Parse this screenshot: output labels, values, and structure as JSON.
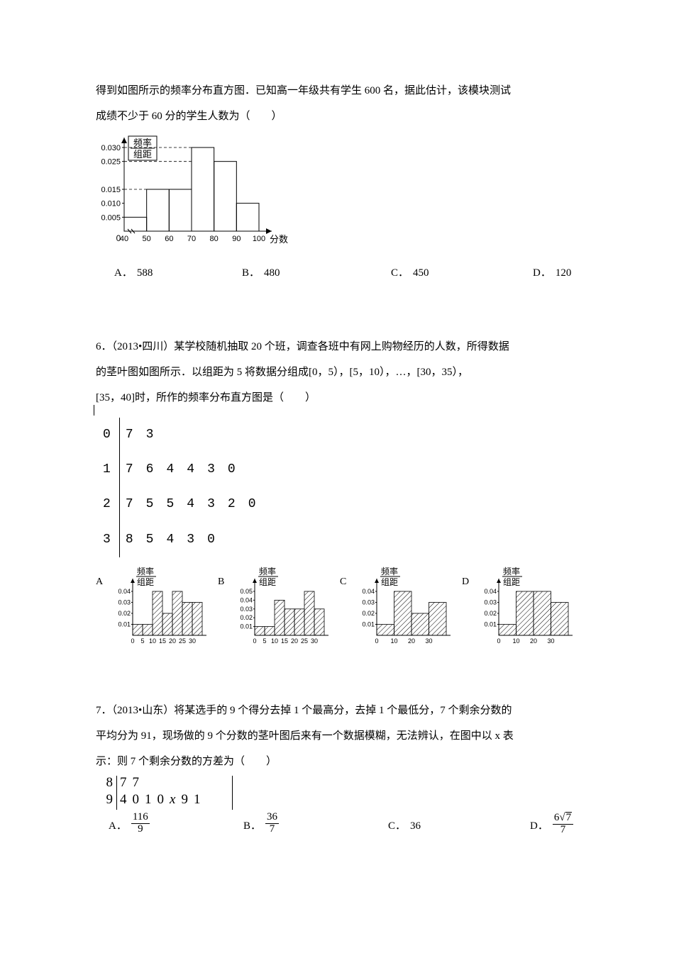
{
  "q5": {
    "para1": "得到如图所示的频率分布直方图．已知高一年级共有学生 600 名，据此估计，该模块测试",
    "para2": "成绩不少于 60 分的学生人数为（　　）",
    "chart": {
      "type": "histogram",
      "ylabel_top": "频率",
      "ylabel_bottom": "组距",
      "xlabel": "分数",
      "y_ticks": [
        0.005,
        0.01,
        0.015,
        0.025,
        0.03
      ],
      "x_ticks": [
        40,
        50,
        60,
        70,
        80,
        90,
        100
      ],
      "bars": [
        {
          "x0": 40,
          "x1": 50,
          "h": 0.005
        },
        {
          "x0": 50,
          "x1": 60,
          "h": 0.015
        },
        {
          "x0": 60,
          "x1": 70,
          "h": 0.015
        },
        {
          "x0": 70,
          "x1": 80,
          "h": 0.03
        },
        {
          "x0": 80,
          "x1": 90,
          "h": 0.025
        },
        {
          "x0": 90,
          "x1": 100,
          "h": 0.01
        }
      ],
      "dashed_y": [
        0.015,
        0.025,
        0.03
      ],
      "axes_color": "#000000",
      "background_color": "#ffffff"
    },
    "options": {
      "A": "588",
      "B": "480",
      "C": "450",
      "D": "120"
    }
  },
  "q6": {
    "para1": "6．（2013•四川）某学校随机抽取 20 个班，调查各班中有网上购物经历的人数，所得数据",
    "para2": "的茎叶图如图所示．以组距为 5 将数据分组成[0，5），[5，10），…，[30，35），",
    "para3": "[35，40]时，所作的频率分布直方图是（　　）",
    "stemleaf": {
      "rows": [
        {
          "stem": "0",
          "leaves": [
            "7",
            "3"
          ]
        },
        {
          "stem": "1",
          "leaves": [
            "7",
            "6",
            "4",
            "4",
            "3",
            "0"
          ]
        },
        {
          "stem": "2",
          "leaves": [
            "7",
            "5",
            "5",
            "4",
            "3",
            "2",
            "0"
          ]
        },
        {
          "stem": "3",
          "leaves": [
            "8",
            "5",
            "4",
            "3",
            "0"
          ]
        }
      ]
    },
    "option_labels": {
      "A": "A",
      "B": "B",
      "C": "C",
      "D": "D"
    },
    "small_chart_common": {
      "ylabel_top": "频率",
      "ylabel_bottom": "组距",
      "hatch_color": "#000000",
      "axes_color": "#000000"
    },
    "chartA": {
      "type": "histogram",
      "y_ticks": [
        0.01,
        0.02,
        0.03,
        0.04
      ],
      "x_ticks": [
        0,
        5,
        10,
        15,
        20,
        25,
        30
      ],
      "x_extra_tick": 35,
      "bars": [
        {
          "x0": 0,
          "x1": 5,
          "h": 0.01
        },
        {
          "x0": 5,
          "x1": 10,
          "h": 0.01
        },
        {
          "x0": 10,
          "x1": 15,
          "h": 0.04
        },
        {
          "x0": 15,
          "x1": 20,
          "h": 0.02
        },
        {
          "x0": 20,
          "x1": 25,
          "h": 0.04
        },
        {
          "x0": 25,
          "x1": 30,
          "h": 0.03
        },
        {
          "x0": 30,
          "x1": 35,
          "h": 0.03
        }
      ]
    },
    "chartB": {
      "type": "histogram",
      "y_ticks": [
        0.01,
        0.02,
        0.03,
        0.04,
        0.05
      ],
      "x_ticks": [
        0,
        5,
        10,
        15,
        20,
        25,
        30
      ],
      "x_extra_tick": 35,
      "bars": [
        {
          "x0": 0,
          "x1": 5,
          "h": 0.01
        },
        {
          "x0": 5,
          "x1": 10,
          "h": 0.01
        },
        {
          "x0": 10,
          "x1": 15,
          "h": 0.04
        },
        {
          "x0": 15,
          "x1": 20,
          "h": 0.03
        },
        {
          "x0": 20,
          "x1": 25,
          "h": 0.03
        },
        {
          "x0": 25,
          "x1": 30,
          "h": 0.05
        },
        {
          "x0": 30,
          "x1": 35,
          "h": 0.03
        }
      ]
    },
    "chartC": {
      "type": "histogram",
      "y_ticks": [
        0.01,
        0.02,
        0.03,
        0.04
      ],
      "x_ticks": [
        0,
        10,
        20,
        30
      ],
      "x_extra_tick": 40,
      "bars": [
        {
          "x0": 0,
          "x1": 10,
          "h": 0.01
        },
        {
          "x0": 10,
          "x1": 20,
          "h": 0.04
        },
        {
          "x0": 20,
          "x1": 30,
          "h": 0.02
        },
        {
          "x0": 30,
          "x1": 40,
          "h": 0.03
        }
      ]
    },
    "chartD": {
      "type": "histogram",
      "y_ticks": [
        0.01,
        0.02,
        0.03,
        0.04
      ],
      "x_ticks": [
        0,
        10,
        20,
        30
      ],
      "x_extra_tick": 40,
      "bars": [
        {
          "x0": 0,
          "x1": 10,
          "h": 0.01
        },
        {
          "x0": 10,
          "x1": 20,
          "h": 0.04
        },
        {
          "x0": 20,
          "x1": 30,
          "h": 0.04
        },
        {
          "x0": 30,
          "x1": 40,
          "h": 0.03
        }
      ]
    }
  },
  "q7": {
    "para1": "7．（2013•山东）将某选手的 9 个得分去掉 1 个最高分，去掉 1 个最低分，7 个剩余分数的",
    "para2": "平均分为 91，现场做的 9 个分数的茎叶图后来有一个数据模糊，无法辨认，在图中以 x 表",
    "para3": "示：则 7 个剩余分数的方差为（　　）",
    "stemleaf": {
      "rows": [
        {
          "stem": "8",
          "leaves": [
            "7",
            "7"
          ]
        },
        {
          "stem": "9",
          "leaves": [
            "4",
            "0",
            "1",
            "0",
            "x",
            "9",
            "1"
          ]
        }
      ],
      "x_style": "italic"
    },
    "options": {
      "A": {
        "type": "frac",
        "num": "116",
        "den": "9"
      },
      "B": {
        "type": "frac",
        "num": "36",
        "den": "7"
      },
      "C": {
        "type": "plain",
        "text": "36"
      },
      "D": {
        "type": "frac_sqrt",
        "coef": "6",
        "rad": "7",
        "den": "7"
      }
    }
  }
}
